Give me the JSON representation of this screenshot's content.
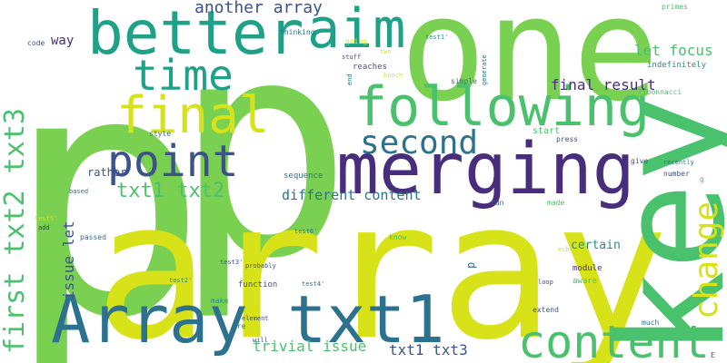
{
  "background": "#ffffff",
  "palette": {
    "lime": "#7ad151",
    "yellow": "#d7e219",
    "green": "#4ac16d",
    "teal": "#1fa187",
    "tealdark": "#21918c",
    "blue": "#2c728e",
    "navy": "#3b528b",
    "purple": "#472d7b",
    "deep": "#440154"
  },
  "words": [
    {
      "text": "p"
    },
    {
      "text": "p"
    },
    {
      "text": "array"
    },
    {
      "text": "one"
    },
    {
      "text": "key"
    },
    {
      "text": "merging"
    },
    {
      "text": "Array txt1"
    },
    {
      "text": "better"
    },
    {
      "text": "aim"
    },
    {
      "text": "following"
    },
    {
      "text": "content"
    },
    {
      "text": "time"
    },
    {
      "text": "final"
    },
    {
      "text": "point"
    },
    {
      "text": "second"
    },
    {
      "text": "change"
    },
    {
      "text": "first txt2 txt3"
    },
    {
      "text": "txt1 txt2"
    },
    {
      "text": "final result"
    },
    {
      "text": "let focus"
    },
    {
      "text": "another array"
    },
    {
      "text": "different content"
    },
    {
      "text": "issue let"
    },
    {
      "text": "trivial issue"
    },
    {
      "text": "txt1 txt3"
    },
    {
      "text": "way"
    },
    {
      "text": "certain"
    },
    {
      "text": "rather"
    },
    {
      "text": "sequence"
    },
    {
      "text": "code"
    },
    {
      "text": "thinking"
    },
    {
      "text": "going"
    },
    {
      "text": "two"
    },
    {
      "text": "test1'"
    },
    {
      "text": "stuff"
    },
    {
      "text": "reaches"
    },
    {
      "text": "bunch"
    },
    {
      "text": "end"
    },
    {
      "text": "simple"
    },
    {
      "text": "generate"
    },
    {
      "text": "primes"
    },
    {
      "text": "indefinitely"
    },
    {
      "text": "fibonnacci"
    },
    {
      "text": "style"
    },
    {
      "text": "start"
    },
    {
      "text": "press"
    },
    {
      "text": "give"
    },
    {
      "text": "recently"
    },
    {
      "text": "number"
    },
    {
      "text": "based"
    },
    {
      "text": "made"
    },
    {
      "text": "run"
    },
    {
      "text": "test5'"
    },
    {
      "text": "add"
    },
    {
      "text": "test6'"
    },
    {
      "text": "passed"
    },
    {
      "text": "know"
    },
    {
      "text": "echo"
    },
    {
      "text": "module"
    },
    {
      "text": "test3'"
    },
    {
      "text": "probably"
    },
    {
      "text": "test2'"
    },
    {
      "text": "function"
    },
    {
      "text": "test4'"
    },
    {
      "text": "loop"
    },
    {
      "text": "aware"
    },
    {
      "text": "make"
    },
    {
      "text": "pre"
    },
    {
      "text": "element"
    },
    {
      "text": "extend"
    },
    {
      "text": "much"
    },
    {
      "text": "will"
    },
    {
      "text": "E"
    },
    {
      "text": "g"
    },
    {
      "text": "p"
    }
  ]
}
